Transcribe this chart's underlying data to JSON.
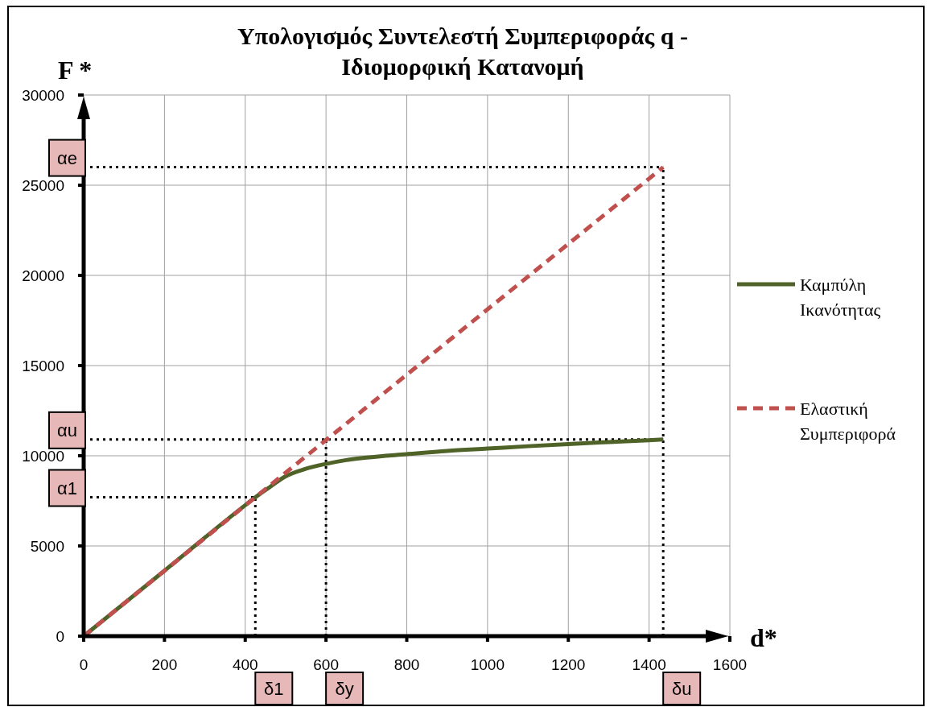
{
  "chart_data": {
    "type": "line",
    "title": "Υπολογισμός Συντελεστή Συμπεριφοράς q - Ιδιομορφική Κατανομή",
    "xlabel": "d*",
    "ylabel": "F *",
    "series": [
      {
        "name": "Καμπύλη Ικανότητας",
        "color": "#4f6228",
        "line_style": "solid",
        "x": [
          0,
          200,
          400,
          430,
          460,
          500,
          550,
          600,
          650,
          700,
          800,
          900,
          1000,
          1100,
          1200,
          1300,
          1435
        ],
        "values": [
          0,
          3630,
          7260,
          7780,
          8250,
          8860,
          9280,
          9550,
          9760,
          9900,
          10090,
          10270,
          10400,
          10530,
          10650,
          10760,
          10900
        ]
      },
      {
        "name": "Ελαστική Συμπεριφορά",
        "color": "#c0504d",
        "line_style": "dashed",
        "x": [
          0,
          1435
        ],
        "values": [
          0,
          26000
        ]
      }
    ],
    "xlim": [
      0,
      1600
    ],
    "xticks": [
      0,
      200,
      400,
      600,
      800,
      1000,
      1200,
      1400,
      1600
    ],
    "ylim": [
      0,
      30000
    ],
    "yticks": [
      0,
      5000,
      10000,
      15000,
      20000,
      25000,
      30000
    ],
    "grid": true,
    "legend": "right",
    "marker": "none",
    "ref_lines": [
      {
        "axis": "y",
        "value": 26000,
        "label": "αe",
        "color": "#000000",
        "line_style": "dotted"
      },
      {
        "axis": "y",
        "value": 10900,
        "label": "αu",
        "color": "#000000",
        "line_style": "dotted"
      },
      {
        "axis": "y",
        "value": 7700,
        "label": "α1",
        "color": "#000000",
        "line_style": "dotted"
      },
      {
        "axis": "x",
        "value": 425,
        "label": "δ1",
        "color": "#000000",
        "line_style": "dotted"
      },
      {
        "axis": "x",
        "value": 600,
        "label": "δy",
        "color": "#000000",
        "line_style": "dotted"
      },
      {
        "axis": "x",
        "value": 1435,
        "label": "δu",
        "color": "#000000",
        "line_style": "dotted"
      }
    ]
  }
}
